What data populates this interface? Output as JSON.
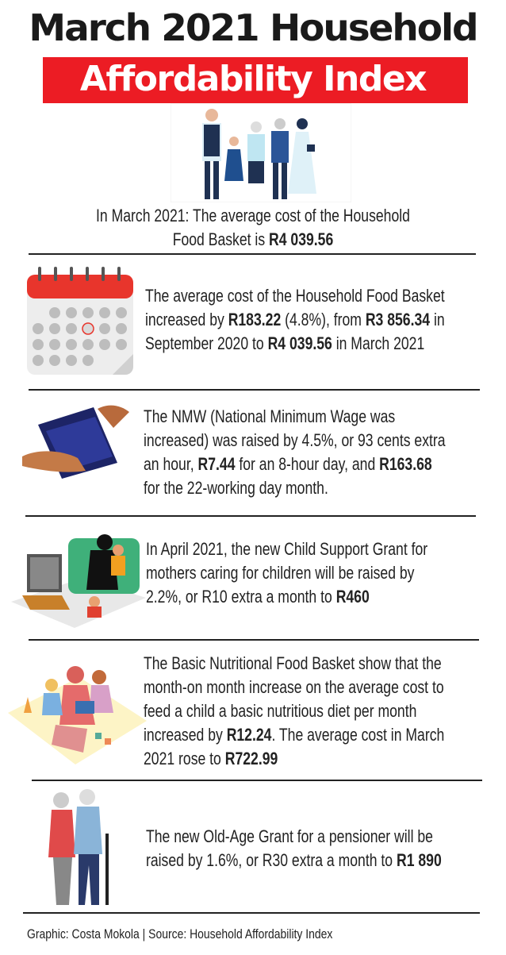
{
  "header": {
    "title_line1": "March 2021 Household",
    "title_line2": "Affordability Index"
  },
  "intro": {
    "lines": [
      [
        {
          "t": "In March 2021: The average cost of the Household"
        }
      ],
      [
        {
          "t": "Food Basket is "
        },
        {
          "t": "R4 039.56",
          "b": true
        }
      ]
    ]
  },
  "sections": [
    {
      "icon": "calendar-icon",
      "lines": [
        [
          {
            "t": "The average cost of the Household Food Basket"
          }
        ],
        [
          {
            "t": "increased by "
          },
          {
            "t": "R183.22",
            "b": true
          },
          {
            "t": " (4.8%), from "
          },
          {
            "t": "R3 856.34",
            "b": true
          },
          {
            "t": " in"
          }
        ],
        [
          {
            "t": "September 2020 to "
          },
          {
            "t": "R4 039.56",
            "b": true
          },
          {
            "t": " in March 2021"
          }
        ]
      ]
    },
    {
      "icon": "empty-wallet-icon",
      "lines": [
        [
          {
            "t": "The NMW (National Minimum Wage was"
          }
        ],
        [
          {
            "t": "increased) was raised by 4.5%, or 93 cents extra"
          }
        ],
        [
          {
            "t": "an hour, "
          },
          {
            "t": "R7.44",
            "b": true
          },
          {
            "t": " for an 8-hour day, and "
          },
          {
            "t": "R163.68",
            "b": true
          }
        ],
        [
          {
            "t": "for the 22-working day month."
          }
        ]
      ]
    },
    {
      "icon": "family-watching-tv-icon",
      "lines": [
        [
          {
            "t": "In April 2021, the new Child Support Grant for"
          }
        ],
        [
          {
            "t": "mothers caring for children will be raised by"
          }
        ],
        [
          {
            "t": "2.2%, or R10 extra a month to "
          },
          {
            "t": "R460",
            "b": true
          }
        ]
      ]
    },
    {
      "icon": "family-reading-icon",
      "lines": [
        [
          {
            "t": "The Basic Nutritional Food Basket show that the"
          }
        ],
        [
          {
            "t": "month-on month increase on the average cost to"
          }
        ],
        [
          {
            "t": "feed a child a basic nutritious diet per month"
          }
        ],
        [
          {
            "t": "increased by "
          },
          {
            "t": "R12.24",
            "b": true
          },
          {
            "t": ". The average cost in March"
          }
        ],
        [
          {
            "t": "2021 rose to "
          },
          {
            "t": "R722.99",
            "b": true
          }
        ]
      ]
    },
    {
      "icon": "elderly-couple-icon",
      "lines": [
        [
          {
            "t": "The new Old-Age Grant for a pensioner will be"
          }
        ],
        [
          {
            "t": "raised by 1.6%, or R30 extra a month to "
          },
          {
            "t": "R1 890",
            "b": true
          }
        ]
      ]
    }
  ],
  "footer": {
    "credit": "Graphic: Costa Mokola | Source: Household Affordability Index"
  },
  "colors": {
    "accent_red": "#ec1c24",
    "text": "#1e1e1e"
  }
}
